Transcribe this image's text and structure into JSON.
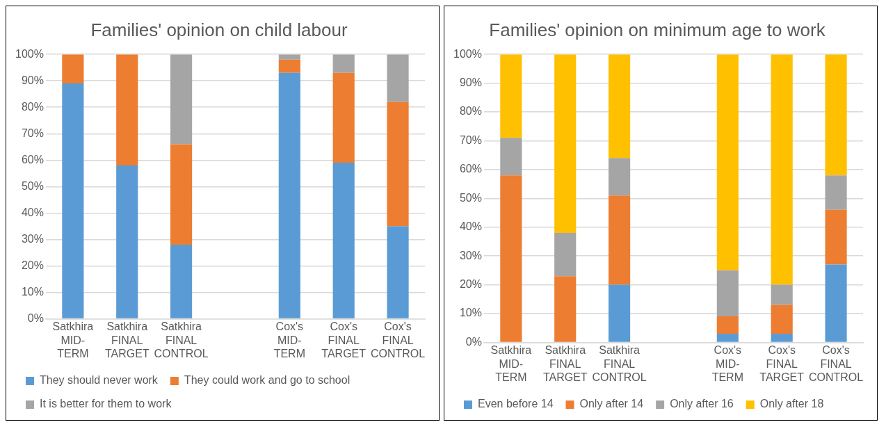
{
  "chart_data": [
    {
      "type": "bar",
      "title": "Families' opinion on child labour",
      "stacked": true,
      "legend": "bottom",
      "grid": "y",
      "categories": [
        "Satkhira MID-TERM",
        "Satkhira FINAL TARGET",
        "Satkhira FINAL CONTROL",
        null,
        "Cox's MID-TERM",
        "Cox's FINAL TARGET",
        "Cox's FINAL CONTROL"
      ],
      "ylim": [
        0,
        100
      ],
      "yticks": [
        {
          "value": 0,
          "label": "0%"
        },
        {
          "value": 10,
          "label": "10%"
        },
        {
          "value": 20,
          "label": "20%"
        },
        {
          "value": 30,
          "label": "30%"
        },
        {
          "value": 40,
          "label": "40%"
        },
        {
          "value": 50,
          "label": "50%"
        },
        {
          "value": 60,
          "label": "60%"
        },
        {
          "value": 70,
          "label": "70%"
        },
        {
          "value": 80,
          "label": "80%"
        },
        {
          "value": 90,
          "label": "90%"
        },
        {
          "value": 100,
          "label": "100%"
        }
      ],
      "series": [
        {
          "name": "They should never work",
          "color": "#5b9bd5",
          "values": [
            89,
            58,
            28,
            null,
            93,
            59,
            35
          ]
        },
        {
          "name": "They could work and go to school",
          "color": "#ed7d31",
          "values": [
            11,
            42,
            38,
            null,
            5,
            34,
            47
          ]
        },
        {
          "name": "It is better for them to work",
          "color": "#a5a5a5",
          "values": [
            0,
            0,
            34,
            null,
            2,
            7,
            18
          ]
        }
      ]
    },
    {
      "type": "bar",
      "title": "Families' opinion on minimum age to work",
      "stacked": true,
      "legend": "bottom",
      "grid": "y",
      "categories": [
        "Satkhira MID-TERM",
        "Satkhira FINAL TARGET",
        "Satkhira FINAL CONTROL",
        null,
        "Cox's MID-TERM",
        "Cox's FINAL TARGET",
        "Cox's FINAL CONTROL"
      ],
      "ylim": [
        0,
        100
      ],
      "yticks": [
        {
          "value": 0,
          "label": "0%"
        },
        {
          "value": 10,
          "label": "10%"
        },
        {
          "value": 20,
          "label": "20%"
        },
        {
          "value": 30,
          "label": "30%"
        },
        {
          "value": 40,
          "label": "40%"
        },
        {
          "value": 50,
          "label": "50%"
        },
        {
          "value": 60,
          "label": "60%"
        },
        {
          "value": 70,
          "label": "70%"
        },
        {
          "value": 80,
          "label": "80%"
        },
        {
          "value": 90,
          "label": "90%"
        },
        {
          "value": 100,
          "label": "100%"
        }
      ],
      "series": [
        {
          "name": "Even before 14",
          "color": "#5b9bd5",
          "values": [
            0,
            0,
            20,
            null,
            3,
            3,
            27
          ]
        },
        {
          "name": "Only after 14",
          "color": "#ed7d31",
          "values": [
            58,
            23,
            31,
            null,
            6,
            10,
            19
          ]
        },
        {
          "name": "Only after 16",
          "color": "#a5a5a5",
          "values": [
            13,
            15,
            13,
            null,
            16,
            7,
            12
          ]
        },
        {
          "name": "Only after 18",
          "color": "#ffc000",
          "values": [
            29,
            62,
            36,
            null,
            75,
            80,
            42
          ]
        }
      ]
    }
  ]
}
